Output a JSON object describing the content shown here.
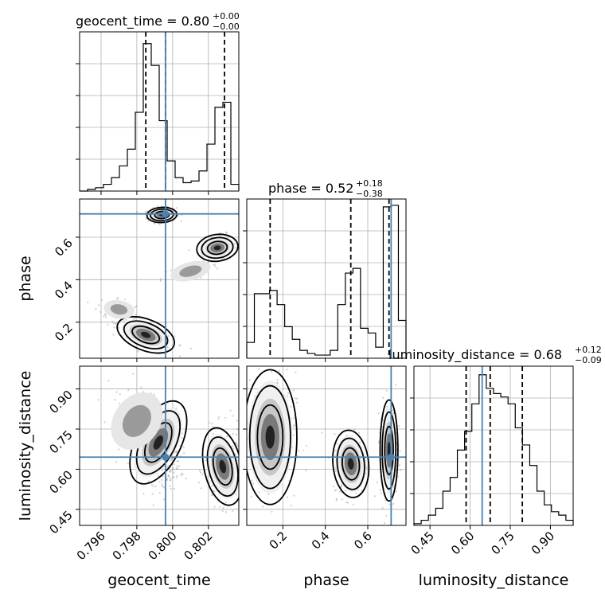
{
  "chart_data": {
    "type": "corner",
    "parameters": [
      "geocent_time",
      "phase",
      "luminosity_distance"
    ],
    "axis_labels": [
      "geocent_time",
      "phase",
      "luminosity_distance"
    ],
    "ranges": {
      "geocent_time": [
        0.7948,
        0.8037
      ],
      "phase": [
        0.03,
        0.78
      ],
      "luminosity_distance": [
        0.39,
        0.985
      ]
    },
    "ticks": {
      "geocent_time": [
        0.796,
        0.798,
        0.8,
        0.802
      ],
      "phase": [
        0.2,
        0.4,
        0.6
      ],
      "luminosity_distance": [
        0.45,
        0.6,
        0.75,
        0.9
      ]
    },
    "tick_labels": {
      "geocent_time": [
        "0.796",
        "0.798",
        "0.800",
        "0.802"
      ],
      "phase": [
        "0.2",
        "0.4",
        "0.6"
      ],
      "luminosity_distance": [
        "0.45",
        "0.60",
        "0.75",
        "0.90"
      ]
    },
    "truths": {
      "geocent_time": 0.7996,
      "phase": 0.71,
      "luminosity_distance": 0.645
    },
    "titles": [
      {
        "param": "geocent_time",
        "text": "geocent_time = 0.80",
        "plus": "+0.00",
        "minus": "−0.00"
      },
      {
        "param": "phase",
        "text": "phase = 0.52",
        "plus": "+0.18",
        "minus": "−0.38"
      },
      {
        "param": "luminosity_distance",
        "text": "luminosity_distance = 0.68",
        "plus": "+0.12",
        "minus": "−0.09"
      }
    ],
    "quantiles": {
      "geocent_time": [
        0.7985,
        0.7996,
        0.8029
      ],
      "phase": [
        0.14,
        0.52,
        0.7
      ],
      "luminosity_distance": [
        0.585,
        0.675,
        0.795
      ]
    },
    "histograms": {
      "geocent_time": [
        0,
        1,
        2,
        4,
        8,
        15,
        25,
        47,
        88,
        75,
        42,
        18,
        8,
        5,
        6,
        12,
        28,
        50,
        53,
        4
      ],
      "phase": [
        10,
        41,
        41,
        43,
        34,
        20,
        12,
        5,
        3,
        2,
        2,
        5,
        34,
        54,
        57,
        19,
        16,
        7,
        96,
        97,
        24
      ],
      "luminosity_distance": [
        1,
        3,
        6,
        10,
        20,
        28,
        44,
        55,
        71,
        88,
        80,
        77,
        75,
        71,
        57,
        47,
        35,
        20,
        12,
        8,
        6,
        3
      ]
    },
    "hist_max": {
      "geocent_time": 95,
      "phase": 101,
      "luminosity_distance": 93
    },
    "modes": {
      "geocent_time_vs_phase": [
        {
          "x": 0.7994,
          "y": 0.705,
          "sx": 0.0004,
          "sy": 0.017,
          "r": 0.1,
          "w": 0.34
        },
        {
          "x": 0.8025,
          "y": 0.55,
          "sx": 0.00055,
          "sy": 0.03,
          "r": 0.2,
          "w": 0.17
        },
        {
          "x": 0.7985,
          "y": 0.14,
          "sx": 0.0008,
          "sy": 0.035,
          "r": -0.75,
          "w": 0.33
        },
        {
          "x": 0.801,
          "y": 0.44,
          "sx": 0.0008,
          "sy": 0.03,
          "r": 0.6,
          "w": 0.06
        },
        {
          "x": 0.797,
          "y": 0.26,
          "sx": 0.0006,
          "sy": 0.03,
          "r": -0.3,
          "w": 0.1
        }
      ],
      "geocent_time_vs_luminosity_distance": [
        {
          "x": 0.7992,
          "y": 0.7,
          "sx": 0.0006,
          "sy": 0.08,
          "r": -0.25,
          "w": 0.6
        },
        {
          "x": 0.798,
          "y": 0.78,
          "sx": 0.0009,
          "sy": 0.08,
          "r": -0.5,
          "w": 0.1
        },
        {
          "x": 0.8028,
          "y": 0.61,
          "sx": 0.0005,
          "sy": 0.07,
          "r": 0.1,
          "w": 0.3
        }
      ],
      "phase_vs_luminosity_distance": [
        {
          "x": 0.14,
          "y": 0.72,
          "sx": 0.06,
          "sy": 0.12,
          "r": 0.0,
          "w": 0.34
        },
        {
          "x": 0.52,
          "y": 0.62,
          "sx": 0.04,
          "sy": 0.06,
          "r": 0.05,
          "w": 0.3
        },
        {
          "x": 0.7,
          "y": 0.67,
          "sx": 0.02,
          "sy": 0.09,
          "r": 0.0,
          "w": 0.36
        }
      ]
    }
  }
}
